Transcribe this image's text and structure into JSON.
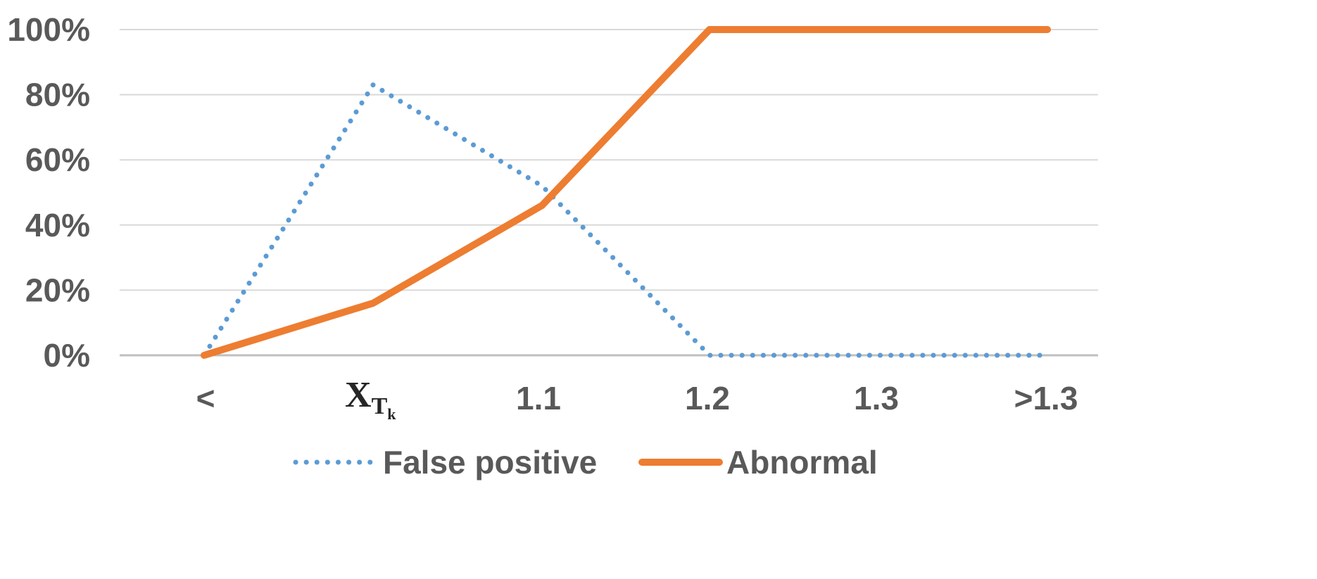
{
  "chart_data": {
    "type": "line",
    "title": "",
    "xlabel": "",
    "ylabel": "",
    "categories": [
      "<",
      "X_Tk",
      "1.1",
      "1.2",
      "1.3",
      ">1.3"
    ],
    "category_labels": {
      "first": "<",
      "xtk_main": "X",
      "xtk_sub": "T",
      "xtk_subsub": "k",
      "third": "1.1",
      "fourth": "1.2",
      "fifth": "1.3",
      "sixth": ">1.3"
    },
    "y_ticks": [
      "0%",
      "20%",
      "40%",
      "60%",
      "80%",
      "100%"
    ],
    "y_tick_values": [
      0,
      20,
      40,
      60,
      80,
      100
    ],
    "ylim": [
      0,
      100
    ],
    "grid": true,
    "legend_position": "bottom",
    "series": [
      {
        "name": "False positive",
        "values": [
          0,
          83,
          52,
          0,
          0,
          0
        ],
        "color": "#5B9BD5",
        "style": "dotted"
      },
      {
        "name": "Abnormal",
        "values": [
          0,
          16,
          46,
          100,
          100,
          100
        ],
        "color": "#ED7D31",
        "style": "solid"
      }
    ]
  }
}
